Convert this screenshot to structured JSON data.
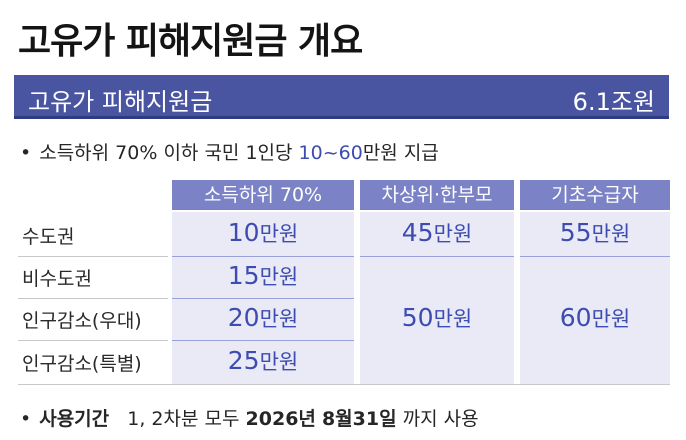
{
  "title": "고유가 피해지원금 개요",
  "banner": {
    "label": "고유가 피해지원금",
    "amount": "6.1조원"
  },
  "bullet1": {
    "prefix": "소득하위 70% 이하 국민 1인당 ",
    "highlight": "10~60",
    "suffix": "만원 지급"
  },
  "table": {
    "headers": [
      "소득하위 70%",
      "차상위·한부모",
      "기초수급자"
    ],
    "rows": [
      "수도권",
      "비수도권",
      "인구감소(우대)",
      "인구감소(특별)"
    ],
    "col1": [
      {
        "value": "10",
        "unit": "만원"
      },
      {
        "value": "15",
        "unit": "만원"
      },
      {
        "value": "20",
        "unit": "만원"
      },
      {
        "value": "25",
        "unit": "만원"
      }
    ],
    "col2": [
      {
        "value": "45",
        "unit": "만원"
      },
      {
        "value": "50",
        "unit": "만원"
      }
    ],
    "col3": [
      {
        "value": "55",
        "unit": "만원"
      },
      {
        "value": "60",
        "unit": "만원"
      }
    ]
  },
  "bullet2": {
    "label": "사용기간",
    "text1": "1, 2차분 모두 ",
    "bold1": "2026년",
    "text2": " ",
    "bold2": "8월31일",
    "text3": " 까지 사용"
  },
  "colors": {
    "banner": "#4a55a2",
    "header": "#7b83c6",
    "cell": "#e9eaf6",
    "accent": "#3c4cb0"
  }
}
